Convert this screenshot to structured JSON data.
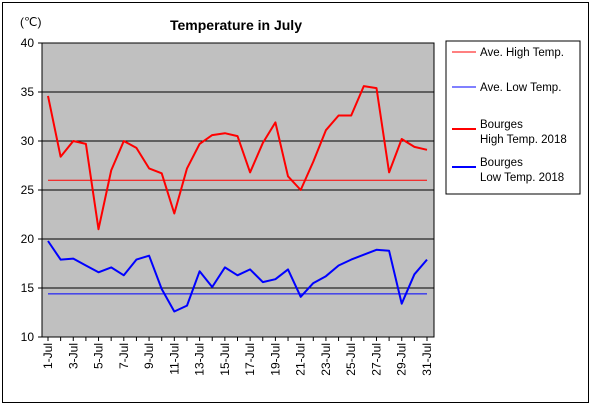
{
  "chart_data": {
    "type": "line",
    "title": "Temperature in July",
    "unit_label": "(℃)",
    "ylim": [
      10,
      40
    ],
    "yticks": [
      10,
      15,
      20,
      25,
      30,
      35,
      40
    ],
    "grid": "horizontal",
    "legend_position": "right",
    "categories": [
      "1-Jul",
      "2-Jul",
      "3-Jul",
      "4-Jul",
      "5-Jul",
      "6-Jul",
      "7-Jul",
      "8-Jul",
      "9-Jul",
      "10-Jul",
      "11-Jul",
      "12-Jul",
      "13-Jul",
      "14-Jul",
      "15-Jul",
      "16-Jul",
      "17-Jul",
      "18-Jul",
      "19-Jul",
      "20-Jul",
      "21-Jul",
      "22-Jul",
      "23-Jul",
      "24-Jul",
      "25-Jul",
      "26-Jul",
      "27-Jul",
      "28-Jul",
      "29-Jul",
      "30-Jul",
      "31-Jul"
    ],
    "tick_labels": [
      "1-Jul",
      "3-Jul",
      "5-Jul",
      "7-Jul",
      "9-Jul",
      "11-Jul",
      "13-Jul",
      "15-Jul",
      "17-Jul",
      "19-Jul",
      "21-Jul",
      "23-Jul",
      "25-Jul",
      "27-Jul",
      "29-Jul",
      "31-Jul"
    ],
    "series": [
      {
        "name": "Ave. High Temp.",
        "color": "#ff0000",
        "width": 1,
        "values": [
          26,
          26,
          26,
          26,
          26,
          26,
          26,
          26,
          26,
          26,
          26,
          26,
          26,
          26,
          26,
          26,
          26,
          26,
          26,
          26,
          26,
          26,
          26,
          26,
          26,
          26,
          26,
          26,
          26,
          26,
          26
        ]
      },
      {
        "name": "Ave. Low Temp.",
        "color": "#0000ff",
        "width": 1,
        "values": [
          14.4,
          14.4,
          14.4,
          14.4,
          14.4,
          14.4,
          14.4,
          14.4,
          14.4,
          14.4,
          14.4,
          14.4,
          14.4,
          14.4,
          14.4,
          14.4,
          14.4,
          14.4,
          14.4,
          14.4,
          14.4,
          14.4,
          14.4,
          14.4,
          14.4,
          14.4,
          14.4,
          14.4,
          14.4,
          14.4,
          14.4
        ]
      },
      {
        "name": "Bourges High Temp. 2018",
        "color": "#ff0000",
        "width": 2,
        "values": [
          34.6,
          28.4,
          30.0,
          29.7,
          21.0,
          27.0,
          30.0,
          29.3,
          27.2,
          26.7,
          22.6,
          27.2,
          29.7,
          30.6,
          30.8,
          30.5,
          26.8,
          29.8,
          31.9,
          26.4,
          25.0,
          27.9,
          31.1,
          32.6,
          32.6,
          35.6,
          35.4,
          26.8,
          30.2,
          29.4,
          29.1
        ]
      },
      {
        "name": "Bourges Low Temp. 2018",
        "color": "#0000ff",
        "width": 2,
        "values": [
          19.8,
          17.9,
          18.0,
          17.3,
          16.6,
          17.1,
          16.3,
          17.9,
          18.3,
          14.9,
          12.6,
          13.2,
          16.7,
          15.1,
          17.1,
          16.3,
          16.9,
          15.6,
          15.9,
          16.9,
          14.1,
          15.5,
          16.2,
          17.3,
          17.9,
          18.4,
          18.9,
          18.8,
          13.4,
          16.4,
          17.9
        ]
      }
    ],
    "legend": [
      {
        "lines": [
          "Ave. High Temp."
        ],
        "color": "#ff0000",
        "width": 1
      },
      {
        "lines": [
          "Ave. Low Temp."
        ],
        "color": "#0000ff",
        "width": 1
      },
      {
        "lines": [
          "Bourges",
          "High Temp. 2018"
        ],
        "color": "#ff0000",
        "width": 2
      },
      {
        "lines": [
          "Bourges",
          "Low Temp. 2018"
        ],
        "color": "#0000ff",
        "width": 2
      }
    ],
    "plot_background": "#c0c0c0"
  }
}
